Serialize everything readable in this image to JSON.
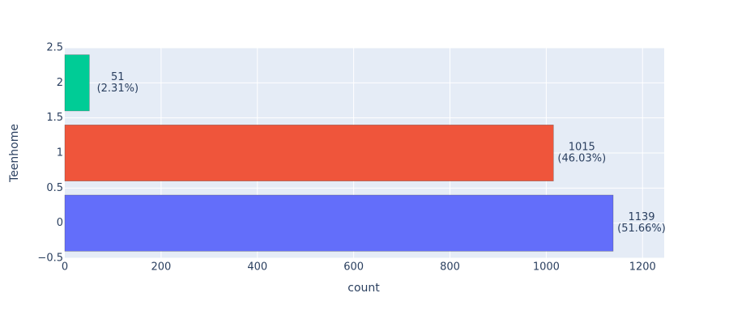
{
  "chart_data": {
    "type": "hbar",
    "x_label": "count",
    "y_label": "Teenhome",
    "y": [
      0,
      1,
      2
    ],
    "values": [
      1139,
      1015,
      51
    ],
    "value_labels": [
      [
        "1139",
        "(51.66%)"
      ],
      [
        "1015",
        "(46.03%)"
      ],
      [
        "51",
        "(2.31%)"
      ]
    ],
    "colors": [
      "#636efa",
      "#ef553b",
      "#00cc96"
    ],
    "xlim": [
      0,
      1245
    ],
    "xticks": [
      0,
      200,
      400,
      600,
      800,
      1000,
      1200
    ],
    "ylim": [
      -0.5,
      2.5
    ],
    "yticks": [
      {
        "value": -0.5,
        "label": "−0.5"
      },
      0,
      0.5,
      1,
      1.5,
      2,
      2.5
    ],
    "grid": true
  }
}
